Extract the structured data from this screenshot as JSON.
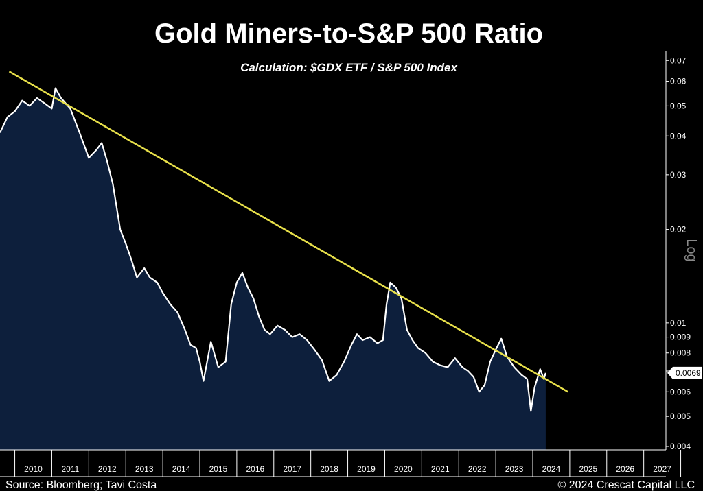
{
  "chart_data": {
    "type": "area",
    "title": "Gold Miners-to-S&P 500 Ratio",
    "subtitle": "Calculation: $GDX ETF / S&P 500 Index",
    "ylabel": "Log",
    "yscale": "log",
    "ylim": [
      0.0039,
      0.073
    ],
    "xlim": [
      2009.6,
      2027.6
    ],
    "grid": false,
    "yticks": [
      0.004,
      0.005,
      0.006,
      0.007,
      0.008,
      0.009,
      0.01,
      0.02,
      0.03,
      0.04,
      0.05,
      0.06,
      0.07
    ],
    "ytick_labels": [
      "0.004",
      "0.005",
      "0.006",
      "",
      "0.008",
      "0.009",
      "0.01",
      "0.02",
      "0.03",
      "0.04",
      "0.05",
      "0.06",
      "0.07"
    ],
    "xticks": [
      "2010",
      "2011",
      "2012",
      "2013",
      "2014",
      "2015",
      "2016",
      "2017",
      "2018",
      "2019",
      "2020",
      "2021",
      "2022",
      "2023",
      "2024",
      "2025",
      "2026",
      "2027"
    ],
    "last_value_label": "0.0069",
    "series": [
      {
        "color": "#ffffff",
        "fill": "#0d1f3c",
        "x": [
          2009.6,
          2009.8,
          2010.0,
          2010.2,
          2010.4,
          2010.6,
          2010.8,
          2011.0,
          2011.1,
          2011.25,
          2011.5,
          2011.75,
          2012.0,
          2012.2,
          2012.35,
          2012.5,
          2012.65,
          2012.85,
          2013.0,
          2013.15,
          2013.3,
          2013.5,
          2013.65,
          2013.85,
          2014.0,
          2014.2,
          2014.4,
          2014.6,
          2014.75,
          2014.9,
          2015.0,
          2015.1,
          2015.3,
          2015.5,
          2015.7,
          2015.85,
          2016.0,
          2016.15,
          2016.3,
          2016.45,
          2016.6,
          2016.75,
          2016.9,
          2017.1,
          2017.3,
          2017.5,
          2017.7,
          2017.9,
          2018.1,
          2018.3,
          2018.5,
          2018.7,
          2018.9,
          2019.1,
          2019.25,
          2019.4,
          2019.6,
          2019.8,
          2019.95,
          2020.05,
          2020.15,
          2020.3,
          2020.45,
          2020.6,
          2020.75,
          2020.9,
          2021.1,
          2021.3,
          2021.5,
          2021.7,
          2021.9,
          2022.1,
          2022.25,
          2022.4,
          2022.55,
          2022.7,
          2022.85,
          2023.0,
          2023.15,
          2023.3,
          2023.5,
          2023.7,
          2023.85,
          2023.95,
          2024.05,
          2024.2,
          2024.3,
          2024.35
        ],
        "y": [
          0.041,
          0.046,
          0.048,
          0.052,
          0.05,
          0.053,
          0.051,
          0.049,
          0.057,
          0.053,
          0.049,
          0.041,
          0.034,
          0.036,
          0.038,
          0.033,
          0.028,
          0.02,
          0.018,
          0.016,
          0.014,
          0.015,
          0.014,
          0.0135,
          0.0125,
          0.0115,
          0.0108,
          0.0095,
          0.0085,
          0.0083,
          0.0075,
          0.0065,
          0.0087,
          0.0072,
          0.0075,
          0.0115,
          0.0135,
          0.0145,
          0.013,
          0.012,
          0.0105,
          0.0095,
          0.0092,
          0.0098,
          0.0095,
          0.009,
          0.0092,
          0.0088,
          0.0082,
          0.0076,
          0.0065,
          0.0068,
          0.0075,
          0.0085,
          0.0092,
          0.0088,
          0.009,
          0.0086,
          0.0088,
          0.0115,
          0.0135,
          0.013,
          0.012,
          0.0095,
          0.0088,
          0.0083,
          0.008,
          0.0075,
          0.0073,
          0.0072,
          0.0077,
          0.0072,
          0.007,
          0.0067,
          0.006,
          0.0063,
          0.0075,
          0.0082,
          0.0089,
          0.0078,
          0.0072,
          0.0068,
          0.0066,
          0.0052,
          0.0062,
          0.0071,
          0.0066,
          0.0069
        ]
      }
    ],
    "trendline": {
      "color": "#e8e04a",
      "x": [
        2009.85,
        2024.95
      ],
      "y": [
        0.0645,
        0.006
      ]
    }
  },
  "footer": {
    "source": "Source: Bloomberg; Tavi Costa",
    "copyright": "© 2024 Crescat Capital LLC"
  }
}
